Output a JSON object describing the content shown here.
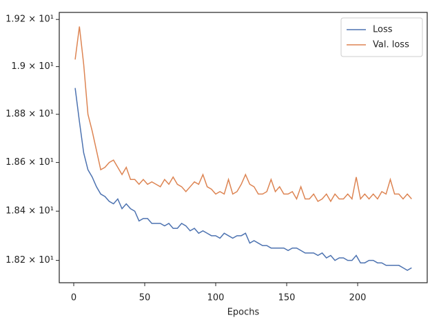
{
  "chart_data": {
    "type": "line",
    "xlabel": "Epochs",
    "x": [
      1,
      4,
      7,
      10,
      13,
      16,
      19,
      22,
      25,
      28,
      31,
      34,
      37,
      40,
      43,
      46,
      49,
      52,
      55,
      58,
      61,
      64,
      67,
      70,
      73,
      76,
      79,
      82,
      85,
      88,
      91,
      94,
      97,
      100,
      103,
      106,
      109,
      112,
      115,
      118,
      121,
      124,
      127,
      130,
      133,
      136,
      139,
      142,
      145,
      148,
      151,
      154,
      157,
      160,
      163,
      166,
      169,
      172,
      175,
      178,
      181,
      184,
      187,
      190,
      193,
      196,
      199,
      202,
      205,
      208,
      211,
      214,
      217,
      220,
      223,
      226,
      229,
      232,
      235,
      238
    ],
    "series": [
      {
        "name": "Loss",
        "color": "#4c72b0",
        "values": [
          18.91,
          18.77,
          18.64,
          18.57,
          18.54,
          18.5,
          18.47,
          18.46,
          18.44,
          18.43,
          18.45,
          18.41,
          18.43,
          18.41,
          18.4,
          18.36,
          18.37,
          18.37,
          18.35,
          18.35,
          18.35,
          18.34,
          18.35,
          18.33,
          18.33,
          18.35,
          18.34,
          18.32,
          18.33,
          18.31,
          18.32,
          18.31,
          18.3,
          18.3,
          18.29,
          18.31,
          18.3,
          18.29,
          18.3,
          18.3,
          18.31,
          18.27,
          18.28,
          18.27,
          18.26,
          18.26,
          18.25,
          18.25,
          18.25,
          18.25,
          18.24,
          18.25,
          18.25,
          18.24,
          18.23,
          18.23,
          18.23,
          18.22,
          18.23,
          18.21,
          18.22,
          18.2,
          18.21,
          18.21,
          18.2,
          18.2,
          18.22,
          18.19,
          18.19,
          18.2,
          18.2,
          18.19,
          18.19,
          18.18,
          18.18,
          18.18,
          18.18,
          18.17,
          18.16,
          18.17
        ]
      },
      {
        "name": "Val. loss",
        "color": "#dd8452",
        "values": [
          19.03,
          19.17,
          19.01,
          18.8,
          18.73,
          18.65,
          18.57,
          18.58,
          18.6,
          18.61,
          18.58,
          18.55,
          18.58,
          18.53,
          18.53,
          18.51,
          18.53,
          18.51,
          18.52,
          18.51,
          18.5,
          18.53,
          18.51,
          18.54,
          18.51,
          18.5,
          18.48,
          18.5,
          18.52,
          18.51,
          18.55,
          18.5,
          18.49,
          18.47,
          18.48,
          18.47,
          18.53,
          18.47,
          18.48,
          18.51,
          18.55,
          18.51,
          18.5,
          18.47,
          18.47,
          18.48,
          18.53,
          18.48,
          18.5,
          18.47,
          18.47,
          18.48,
          18.45,
          18.5,
          18.45,
          18.45,
          18.47,
          18.44,
          18.45,
          18.47,
          18.44,
          18.47,
          18.45,
          18.45,
          18.47,
          18.45,
          18.54,
          18.45,
          18.47,
          18.45,
          18.47,
          18.45,
          18.48,
          18.47,
          18.53,
          18.47,
          18.47,
          18.45,
          18.47,
          18.45
        ]
      }
    ],
    "xlim": [
      -10.2,
      249
    ],
    "ylim": [
      18.11,
      19.23
    ],
    "log_y": true,
    "xticks": [
      0,
      50,
      100,
      150,
      200
    ],
    "yticks": [
      {
        "value": 18.2,
        "label": "1.82 × 10¹"
      },
      {
        "value": 18.4,
        "label": "1.84 × 10¹"
      },
      {
        "value": 18.6,
        "label": "1.86 × 10¹"
      },
      {
        "value": 18.8,
        "label": "1.88 × 10¹"
      },
      {
        "value": 19.0,
        "label": "1.9 × 10¹"
      },
      {
        "value": 19.2,
        "label": "1.92 × 10¹"
      }
    ],
    "grid": false,
    "legend": "upper right"
  }
}
